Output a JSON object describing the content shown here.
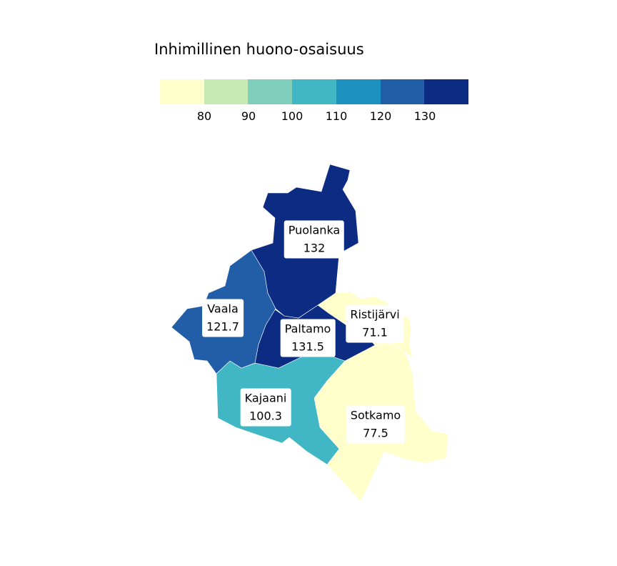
{
  "legend": {
    "title": "Inhimillinen huono-osaisuus",
    "colors": [
      "#ffffcc",
      "#c7e9b4",
      "#7fcdbb",
      "#41b6c4",
      "#1d91c0",
      "#225ea8",
      "#0c2c84"
    ],
    "ticks": [
      "80",
      "90",
      "100",
      "110",
      "120",
      "130"
    ]
  },
  "regions": [
    {
      "name": "Puolanka",
      "value": "132",
      "fill": "#0c2c84"
    },
    {
      "name": "Vaala",
      "value": "121.7",
      "fill": "#225ea8"
    },
    {
      "name": "Paltamo",
      "value": "131.5",
      "fill": "#0c2c84"
    },
    {
      "name": "Ristijärvi",
      "value": "71.1",
      "fill": "#ffffcc"
    },
    {
      "name": "Kajaani",
      "value": "100.3",
      "fill": "#41b6c4"
    },
    {
      "name": "Sotkamo",
      "value": "77.5",
      "fill": "#ffffcc"
    }
  ]
}
